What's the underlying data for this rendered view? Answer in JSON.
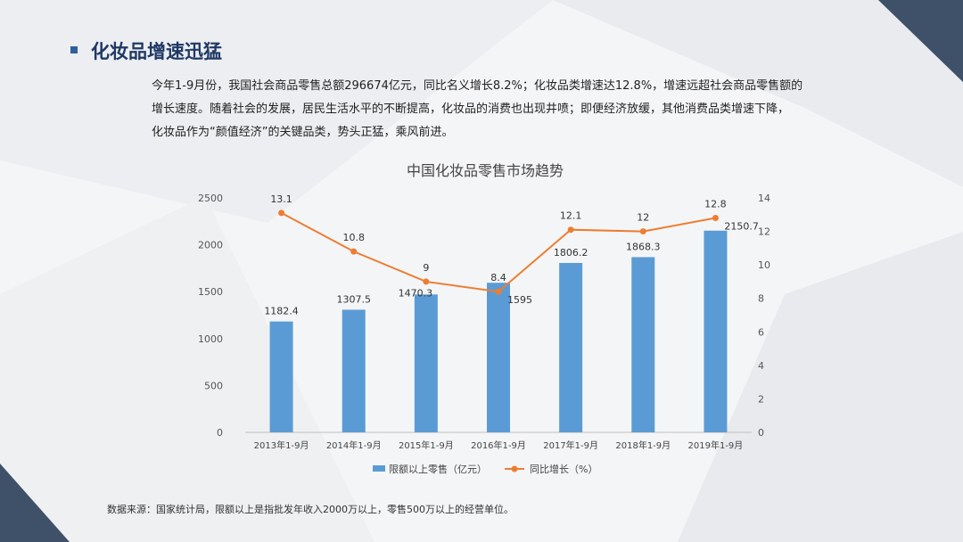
{
  "slide": {
    "title": "化妆品增速迅猛",
    "body_lines": [
      "今年1-9月份，我国社会商品零售总额296674亿元，同比名义增长8.2%；化妆品类增速达12.8%，增速远超社会商品零售额的",
      "增长速度。随着社会的发展，居民生活水平的不断提高，化妆品的消费也出现井喷；即便经济放缓，其他消费品类增速下降，",
      "化妆品作为“颜值经济”的关键品类，势头正猛，乘风前进。"
    ],
    "footnote": "数据来源：国家统计局，限额以上是指批发年收入2000万以上，零售500万以上的经营单位。"
  },
  "colors": {
    "bar": "#5b9bd5",
    "line": "#ed7d31",
    "title": "#1f3864",
    "dark_triangle": "#3e5168"
  },
  "chart_data": {
    "type": "bar",
    "title": "中国化妆品零售市场趋势",
    "categories": [
      "2013年1-9月",
      "2014年1-9月",
      "2015年1-9月",
      "2016年1-9月",
      "2017年1-9月",
      "2018年1-9月",
      "2019年1-9月"
    ],
    "series": [
      {
        "name": "限额以上零售（亿元）",
        "type": "bar",
        "axis": "left",
        "values": [
          1182.4,
          1307.5,
          1470.3,
          1595,
          1806.2,
          1868.3,
          2150.7
        ],
        "labels": [
          "1182.4",
          "1307.5",
          "1470.3",
          "1595",
          "1806.2",
          "1868.3",
          "2150.7"
        ]
      },
      {
        "name": "同比增长（%）",
        "type": "line",
        "axis": "right",
        "values": [
          13.1,
          10.8,
          9,
          8.4,
          12.1,
          12,
          12.8
        ],
        "labels": [
          "13.1",
          "10.8",
          "9",
          "8.4",
          "12.1",
          "12",
          "12.8"
        ]
      }
    ],
    "ylim_left": [
      0,
      2500
    ],
    "yticks_left": [
      "0",
      "500",
      "1000",
      "1500",
      "2000",
      "2500"
    ],
    "ylim_right": [
      0,
      14
    ],
    "yticks_right": [
      "0",
      "2",
      "4",
      "6",
      "8",
      "10",
      "12",
      "14"
    ],
    "legend_position": "bottom",
    "grid": false
  }
}
